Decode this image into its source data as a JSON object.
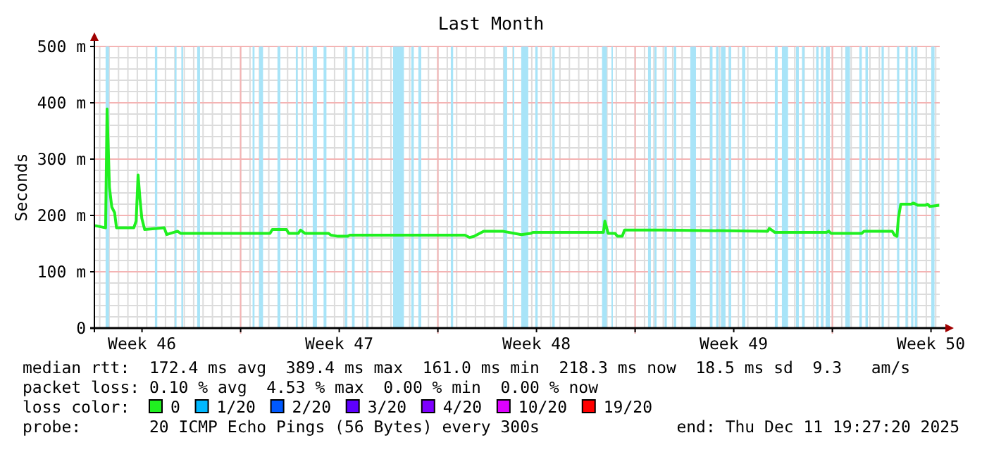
{
  "chart_data": {
    "type": "line",
    "title": "Last Month",
    "ylabel": "Seconds",
    "legend_title": "loss color:",
    "legend": "bottom",
    "grid": true,
    "xlim": [
      "2025-11-11T19:27",
      "2025-12-11T19:27"
    ],
    "xticks": [
      {
        "value": "2025-11-13T12:00",
        "label": "Week 46"
      },
      {
        "value": "2025-11-17T00:00",
        "label": null
      },
      {
        "value": "2025-11-20T12:00",
        "label": "Week 47"
      },
      {
        "value": "2025-11-24T00:00",
        "label": null
      },
      {
        "value": "2025-11-27T12:00",
        "label": "Week 48"
      },
      {
        "value": "2025-12-01T00:00",
        "label": null
      },
      {
        "value": "2025-12-04T12:00",
        "label": "Week 49"
      },
      {
        "value": "2025-12-08T00:00",
        "label": null
      },
      {
        "value": "2025-12-11T12:00",
        "label": "Week 50"
      }
    ],
    "ylim": [
      0,
      500
    ],
    "yticks": [
      0,
      {
        "value": 100,
        "label": "100 m"
      },
      {
        "value": 200,
        "label": "200 m"
      },
      {
        "value": 300,
        "label": "300 m"
      },
      {
        "value": 400,
        "label": "400 m"
      },
      {
        "value": 500,
        "label": "500 m"
      }
    ],
    "series": [
      {
        "name": "0",
        "color": "#20f020",
        "x": [
          "2025-11-11T20:00",
          "2025-11-12T05:00",
          "2025-11-12T06:15",
          "2025-11-12T08:15",
          "2025-11-12T10:15",
          "2025-11-12T12:40",
          "2025-11-12T14:15",
          "2025-11-13T05:00",
          "2025-11-13T07:00",
          "2025-11-13T08:40",
          "2025-11-13T10:15",
          "2025-11-13T11:50",
          "2025-11-13T14:15",
          "2025-11-14T07:00",
          "2025-11-14T09:00",
          "2025-11-14T18:15",
          "2025-11-14T21:00",
          "2025-11-18T01:00",
          "2025-11-18T03:00",
          "2025-11-18T15:00",
          "2025-11-18T17:00",
          "2025-11-19T01:00",
          "2025-11-19T03:00",
          "2025-11-19T07:00",
          "2025-11-20T03:00",
          "2025-11-20T05:00",
          "2025-11-20T11:00",
          "2025-11-20T19:00",
          "2025-11-20T21:00",
          "2025-11-24T23:00",
          "2025-11-25T03:00",
          "2025-11-25T07:00",
          "2025-11-25T15:00",
          "2025-11-26T07:00",
          "2025-11-26T23:00",
          "2025-11-27T07:00",
          "2025-11-27T09:00",
          "2025-11-29T21:00",
          "2025-11-29T22:15",
          "2025-11-30T01:00",
          "2025-11-30T07:00",
          "2025-11-30T09:00",
          "2025-11-30T13:00",
          "2025-11-30T15:00",
          "2025-12-01T23:00",
          "2025-12-05T17:00",
          "2025-12-05T18:15",
          "2025-12-05T23:00",
          "2025-12-07T19:00",
          "2025-12-07T21:00",
          "2025-12-07T23:00",
          "2025-12-09T01:00",
          "2025-12-09T03:00",
          "2025-12-10T03:00",
          "2025-12-10T05:00",
          "2025-12-10T07:00",
          "2025-12-10T08:15",
          "2025-12-10T10:15",
          "2025-12-10T19:00",
          "2025-12-10T21:00",
          "2025-12-11T01:00",
          "2025-12-11T07:00",
          "2025-12-11T09:00",
          "2025-12-11T11:00",
          "2025-12-11T19:00"
        ],
        "values": [
          182,
          178,
          389,
          250,
          215,
          205,
          178,
          178,
          190,
          272,
          230,
          195,
          175,
          178,
          166,
          172,
          168,
          168,
          175,
          175,
          168,
          168,
          174,
          168,
          168,
          165,
          163,
          163,
          165,
          165,
          161,
          163,
          172,
          172,
          166,
          168,
          170,
          170,
          190,
          168,
          168,
          163,
          163,
          174,
          174,
          172,
          177,
          170,
          170,
          172,
          168,
          168,
          172,
          172,
          165,
          163,
          195,
          220,
          220,
          222,
          218,
          218,
          220,
          216,
          218
        ]
      },
      {
        "name": "1/20",
        "color": "#00b8ff"
      },
      {
        "name": "2/20",
        "color": "#0059ff"
      },
      {
        "name": "3/20",
        "color": "#5e00ff"
      },
      {
        "name": "4/20",
        "color": "#7e00ff"
      },
      {
        "name": "10/20",
        "color": "#dd00ff"
      },
      {
        "name": "19/20",
        "color": "#ff0000"
      }
    ],
    "bands": [
      {
        "axis": "x",
        "from": "2025-11-12T05:00",
        "to": "2025-11-12T07:50",
        "color": "#a8e4f8"
      },
      {
        "axis": "x",
        "from": "2025-11-13T23:00",
        "to": "2025-11-14T01:00",
        "color": "#a8e4f8"
      },
      {
        "axis": "x",
        "from": "2025-11-14T15:50",
        "to": "2025-11-14T17:25",
        "color": "#a8e4f8"
      },
      {
        "axis": "x",
        "from": "2025-11-14T21:30",
        "to": "2025-11-14T23:00",
        "color": "#a8e4f8"
      },
      {
        "axis": "x",
        "from": "2025-11-15T11:00",
        "to": "2025-11-15T13:25",
        "color": "#a8e4f8"
      },
      {
        "axis": "x",
        "from": "2025-11-17T10:10",
        "to": "2025-11-17T11:50",
        "color": "#a8e4f8"
      },
      {
        "axis": "x",
        "from": "2025-11-17T15:50",
        "to": "2025-11-17T19:05",
        "color": "#a8e4f8"
      },
      {
        "axis": "x",
        "from": "2025-11-18T07:25",
        "to": "2025-11-18T09:50",
        "color": "#a8e4f8"
      },
      {
        "axis": "x",
        "from": "2025-11-18T23:00",
        "to": "2025-11-19T00:35",
        "color": "#a8e4f8"
      },
      {
        "axis": "x",
        "from": "2025-11-19T03:50",
        "to": "2025-11-19T05:25",
        "color": "#a8e4f8"
      },
      {
        "axis": "x",
        "from": "2025-11-19T13:25",
        "to": "2025-11-19T17:00",
        "color": "#a8e4f8"
      },
      {
        "axis": "x",
        "from": "2025-11-19T22:40",
        "to": "2025-11-20T01:05",
        "color": "#a8e4f8"
      },
      {
        "axis": "x",
        "from": "2025-11-20T16:50",
        "to": "2025-11-20T18:55",
        "color": "#a8e4f8"
      },
      {
        "axis": "x",
        "from": "2025-11-20T22:50",
        "to": "2025-11-21T01:05",
        "color": "#a8e4f8"
      },
      {
        "axis": "x",
        "from": "2025-11-21T10:50",
        "to": "2025-11-21T12:55",
        "color": "#a8e4f8"
      },
      {
        "axis": "x",
        "from": "2025-11-22T09:50",
        "to": "2025-11-22T19:05",
        "color": "#a8e4f8"
      },
      {
        "axis": "x",
        "from": "2025-11-23T01:25",
        "to": "2025-11-23T03:30",
        "color": "#a8e4f8"
      },
      {
        "axis": "x",
        "from": "2025-11-23T07:25",
        "to": "2025-11-23T09:50",
        "color": "#a8e4f8"
      },
      {
        "axis": "x",
        "from": "2025-11-24T11:00",
        "to": "2025-11-24T13:00",
        "color": "#a8e4f8"
      },
      {
        "axis": "x",
        "from": "2025-11-26T07:50",
        "to": "2025-11-26T11:00",
        "color": "#a8e4f8"
      },
      {
        "axis": "x",
        "from": "2025-11-26T15:50",
        "to": "2025-11-26T17:00",
        "color": "#a8e4f8"
      },
      {
        "axis": "x",
        "from": "2025-11-26T23:00",
        "to": "2025-11-27T05:00",
        "color": "#a8e4f8"
      },
      {
        "axis": "x",
        "from": "2025-11-27T11:00",
        "to": "2025-11-27T13:00",
        "color": "#a8e4f8"
      },
      {
        "axis": "x",
        "from": "2025-11-28T01:25",
        "to": "2025-11-28T03:30",
        "color": "#a8e4f8"
      },
      {
        "axis": "x",
        "from": "2025-11-29T19:50",
        "to": "2025-11-29T23:55",
        "color": "#a8e4f8"
      },
      {
        "axis": "x",
        "from": "2025-11-30T03:50",
        "to": "2025-11-30T05:00",
        "color": "#a8e4f8"
      },
      {
        "axis": "x",
        "from": "2025-12-01T11:00",
        "to": "2025-12-01T13:25",
        "color": "#a8e4f8"
      },
      {
        "axis": "x",
        "from": "2025-12-01T16:35",
        "to": "2025-12-01T18:15",
        "color": "#a8e4f8"
      },
      {
        "axis": "x",
        "from": "2025-12-02T01:05",
        "to": "2025-12-02T03:00",
        "color": "#a8e4f8"
      },
      {
        "axis": "x",
        "from": "2025-12-02T09:00",
        "to": "2025-12-02T11:00",
        "color": "#a8e4f8"
      },
      {
        "axis": "x",
        "from": "2025-12-02T23:00",
        "to": "2025-12-03T03:50",
        "color": "#a8e4f8"
      },
      {
        "axis": "x",
        "from": "2025-12-03T15:50",
        "to": "2025-12-03T17:55",
        "color": "#a8e4f8"
      },
      {
        "axis": "x",
        "from": "2025-12-03T21:00",
        "to": "2025-12-03T23:00",
        "color": "#a8e4f8"
      },
      {
        "axis": "x",
        "from": "2025-12-04T01:05",
        "to": "2025-12-04T05:00",
        "color": "#a8e4f8"
      },
      {
        "axis": "x",
        "from": "2025-12-04T07:50",
        "to": "2025-12-04T09:50",
        "color": "#a8e4f8"
      },
      {
        "axis": "x",
        "from": "2025-12-04T19:05",
        "to": "2025-12-04T21:50",
        "color": "#a8e4f8"
      },
      {
        "axis": "x",
        "from": "2025-12-05T23:00",
        "to": "2025-12-06T01:25",
        "color": "#a8e4f8"
      },
      {
        "axis": "x",
        "from": "2025-12-06T05:00",
        "to": "2025-12-06T10:15",
        "color": "#a8e4f8"
      },
      {
        "axis": "x",
        "from": "2025-12-06T17:00",
        "to": "2025-12-06T19:25",
        "color": "#a8e4f8"
      },
      {
        "axis": "x",
        "from": "2025-12-06T22:10",
        "to": "2025-12-07T00:15",
        "color": "#a8e4f8"
      },
      {
        "axis": "x",
        "from": "2025-12-07T10:10",
        "to": "2025-12-07T12:15",
        "color": "#a8e4f8"
      },
      {
        "axis": "x",
        "from": "2025-12-07T14:15",
        "to": "2025-12-07T16:10",
        "color": "#a8e4f8"
      },
      {
        "axis": "x",
        "from": "2025-12-07T18:15",
        "to": "2025-12-07T21:50",
        "color": "#a8e4f8"
      },
      {
        "axis": "x",
        "from": "2025-12-08T11:00",
        "to": "2025-12-08T15:00",
        "color": "#a8e4f8"
      },
      {
        "axis": "x",
        "from": "2025-12-08T23:00",
        "to": "2025-12-09T01:05",
        "color": "#a8e4f8"
      },
      {
        "axis": "x",
        "from": "2025-12-09T04:10",
        "to": "2025-12-09T06:15",
        "color": "#a8e4f8"
      },
      {
        "axis": "x",
        "from": "2025-12-09T17:55",
        "to": "2025-12-09T19:50",
        "color": "#a8e4f8"
      },
      {
        "axis": "x",
        "from": "2025-12-10T07:05",
        "to": "2025-12-10T09:00",
        "color": "#a8e4f8"
      },
      {
        "axis": "x",
        "from": "2025-12-10T14:15",
        "to": "2025-12-10T16:10",
        "color": "#a8e4f8"
      },
      {
        "axis": "x",
        "from": "2025-12-10T19:05",
        "to": "2025-12-10T21:00",
        "color": "#a8e4f8"
      },
      {
        "axis": "x",
        "from": "2025-12-10T22:10",
        "to": "2025-12-11T00:15",
        "color": "#a8e4f8"
      },
      {
        "axis": "x",
        "from": "2025-12-11T12:15",
        "to": "2025-12-11T15:00",
        "color": "#a8e4f8"
      }
    ],
    "annotations": [
      "median rtt:  172.4 ms avg  389.4 ms max  161.0 ms min  218.3 ms now  18.5 ms sd  9.3   am/s",
      "packet loss: 0.10 % avg  4.53 % max  0.00 % min  0.00 % now",
      "probe:       20 ICMP Echo Pings (56 Bytes) every 300s",
      "end: Thu Dec 11 19:27:20 2025"
    ]
  }
}
